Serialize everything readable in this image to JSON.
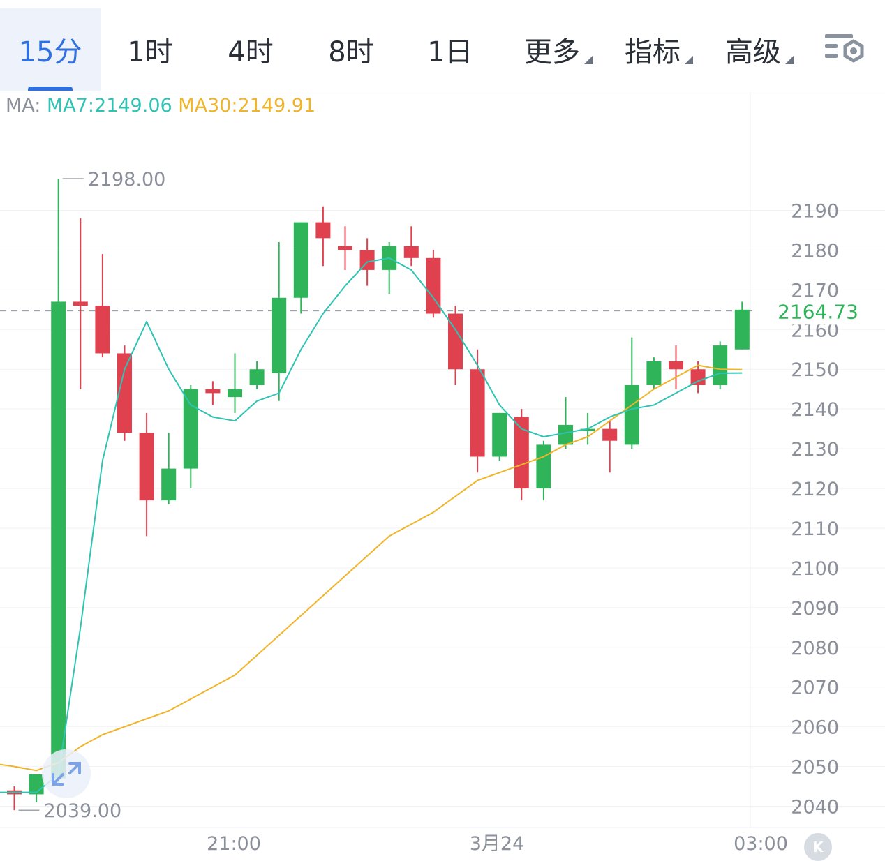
{
  "tabs": [
    {
      "label": "15分",
      "active": true
    },
    {
      "label": "1时"
    },
    {
      "label": "4时"
    },
    {
      "label": "8时"
    },
    {
      "label": "1日"
    },
    {
      "label": "更多",
      "dropdown": true
    },
    {
      "label": "指标",
      "dropdown": true
    },
    {
      "label": "高级",
      "dropdown": true
    }
  ],
  "settings_icon": "chart-settings-icon",
  "ma": {
    "label": "MA:",
    "ma7": "MA7:2149.06",
    "ma30": "MA30:2149.91"
  },
  "colors": {
    "up": "#2fb45a",
    "down": "#e0414f",
    "ma7": "#2ec3b3",
    "ma30": "#f0b429",
    "accent": "#2f6fde",
    "current_price": "#2fb45a"
  },
  "k_button": "K",
  "chart_data": {
    "type": "candlestick",
    "interval": "15分",
    "current_price": "2164.73",
    "high_marker": "2198.00",
    "low_marker": "2039.00",
    "ylim": [
      2036.5,
      2199
    ],
    "y_ticks": [
      "2190",
      "2180",
      "2170",
      "2160",
      "2150",
      "2140",
      "2130",
      "2120",
      "2110",
      "2100",
      "2090",
      "2080",
      "2070",
      "2060",
      "2050",
      "2040"
    ],
    "x_ticks": [
      "21:00",
      "3月24",
      "03:00"
    ],
    "candles": [
      {
        "o": 2044,
        "h": 2045,
        "l": 2039,
        "c": 2043
      },
      {
        "o": 2043,
        "h": 2048,
        "l": 2041,
        "c": 2048
      },
      {
        "o": 2047,
        "h": 2198,
        "l": 2045,
        "c": 2167
      },
      {
        "o": 2167,
        "h": 2188,
        "l": 2145,
        "c": 2166
      },
      {
        "o": 2166,
        "h": 2179,
        "l": 2153,
        "c": 2154
      },
      {
        "o": 2154,
        "h": 2156,
        "l": 2132,
        "c": 2134
      },
      {
        "o": 2134,
        "h": 2139,
        "l": 2108,
        "c": 2117
      },
      {
        "o": 2117,
        "h": 2134,
        "l": 2116,
        "c": 2125
      },
      {
        "o": 2125,
        "h": 2146,
        "l": 2120,
        "c": 2145
      },
      {
        "o": 2145,
        "h": 2147,
        "l": 2141,
        "c": 2144
      },
      {
        "o": 2143,
        "h": 2154,
        "l": 2139,
        "c": 2145
      },
      {
        "o": 2146,
        "h": 2152,
        "l": 2145,
        "c": 2150
      },
      {
        "o": 2149,
        "h": 2182,
        "l": 2142,
        "c": 2168
      },
      {
        "o": 2168,
        "h": 2187,
        "l": 2164,
        "c": 2187
      },
      {
        "o": 2187,
        "h": 2191,
        "l": 2176,
        "c": 2183
      },
      {
        "o": 2181,
        "h": 2186,
        "l": 2175,
        "c": 2180
      },
      {
        "o": 2180,
        "h": 2183,
        "l": 2171,
        "c": 2175
      },
      {
        "o": 2175,
        "h": 2182,
        "l": 2169,
        "c": 2181
      },
      {
        "o": 2181,
        "h": 2186,
        "l": 2176,
        "c": 2178
      },
      {
        "o": 2178,
        "h": 2180,
        "l": 2163,
        "c": 2164
      },
      {
        "o": 2164,
        "h": 2166,
        "l": 2146,
        "c": 2150
      },
      {
        "o": 2150,
        "h": 2155,
        "l": 2124,
        "c": 2128
      },
      {
        "o": 2128,
        "h": 2139,
        "l": 2127,
        "c": 2139
      },
      {
        "o": 2138,
        "h": 2140,
        "l": 2117,
        "c": 2120
      },
      {
        "o": 2120,
        "h": 2132,
        "l": 2117,
        "c": 2131
      },
      {
        "o": 2131,
        "h": 2143,
        "l": 2130,
        "c": 2136
      },
      {
        "o": 2135,
        "h": 2139,
        "l": 2131,
        "c": 2135
      },
      {
        "o": 2135,
        "h": 2137,
        "l": 2124,
        "c": 2132
      },
      {
        "o": 2131,
        "h": 2158,
        "l": 2130,
        "c": 2146
      },
      {
        "o": 2146,
        "h": 2153,
        "l": 2145,
        "c": 2152
      },
      {
        "o": 2152,
        "h": 2156,
        "l": 2145,
        "c": 2150
      },
      {
        "o": 2150,
        "h": 2152,
        "l": 2144,
        "c": 2146
      },
      {
        "o": 2146,
        "h": 2157,
        "l": 2145,
        "c": 2156
      },
      {
        "o": 2155,
        "h": 2167,
        "l": 2155,
        "c": 2165
      }
    ],
    "ma7": [
      2043.5,
      2043.5,
      2048,
      2085,
      2127,
      2150,
      2162,
      2150,
      2141,
      2138,
      2137,
      2142,
      2144,
      2155,
      2164,
      2171,
      2177,
      2178,
      2175,
      2168,
      2160,
      2151,
      2141,
      2135,
      2133,
      2134,
      2135,
      2138,
      2140,
      2141,
      2144,
      2147,
      2149,
      2149.06
    ],
    "ma30": [
      2050,
      2049,
      2051,
      2055,
      2058,
      2060,
      2062,
      2064,
      2067,
      2070,
      2073,
      2078,
      2083,
      2088,
      2093,
      2098,
      2103,
      2108,
      2111,
      2114,
      2118,
      2122,
      2124,
      2126,
      2128,
      2131,
      2133,
      2137,
      2141,
      2145,
      2148,
      2151,
      2150,
      2149.91
    ]
  }
}
